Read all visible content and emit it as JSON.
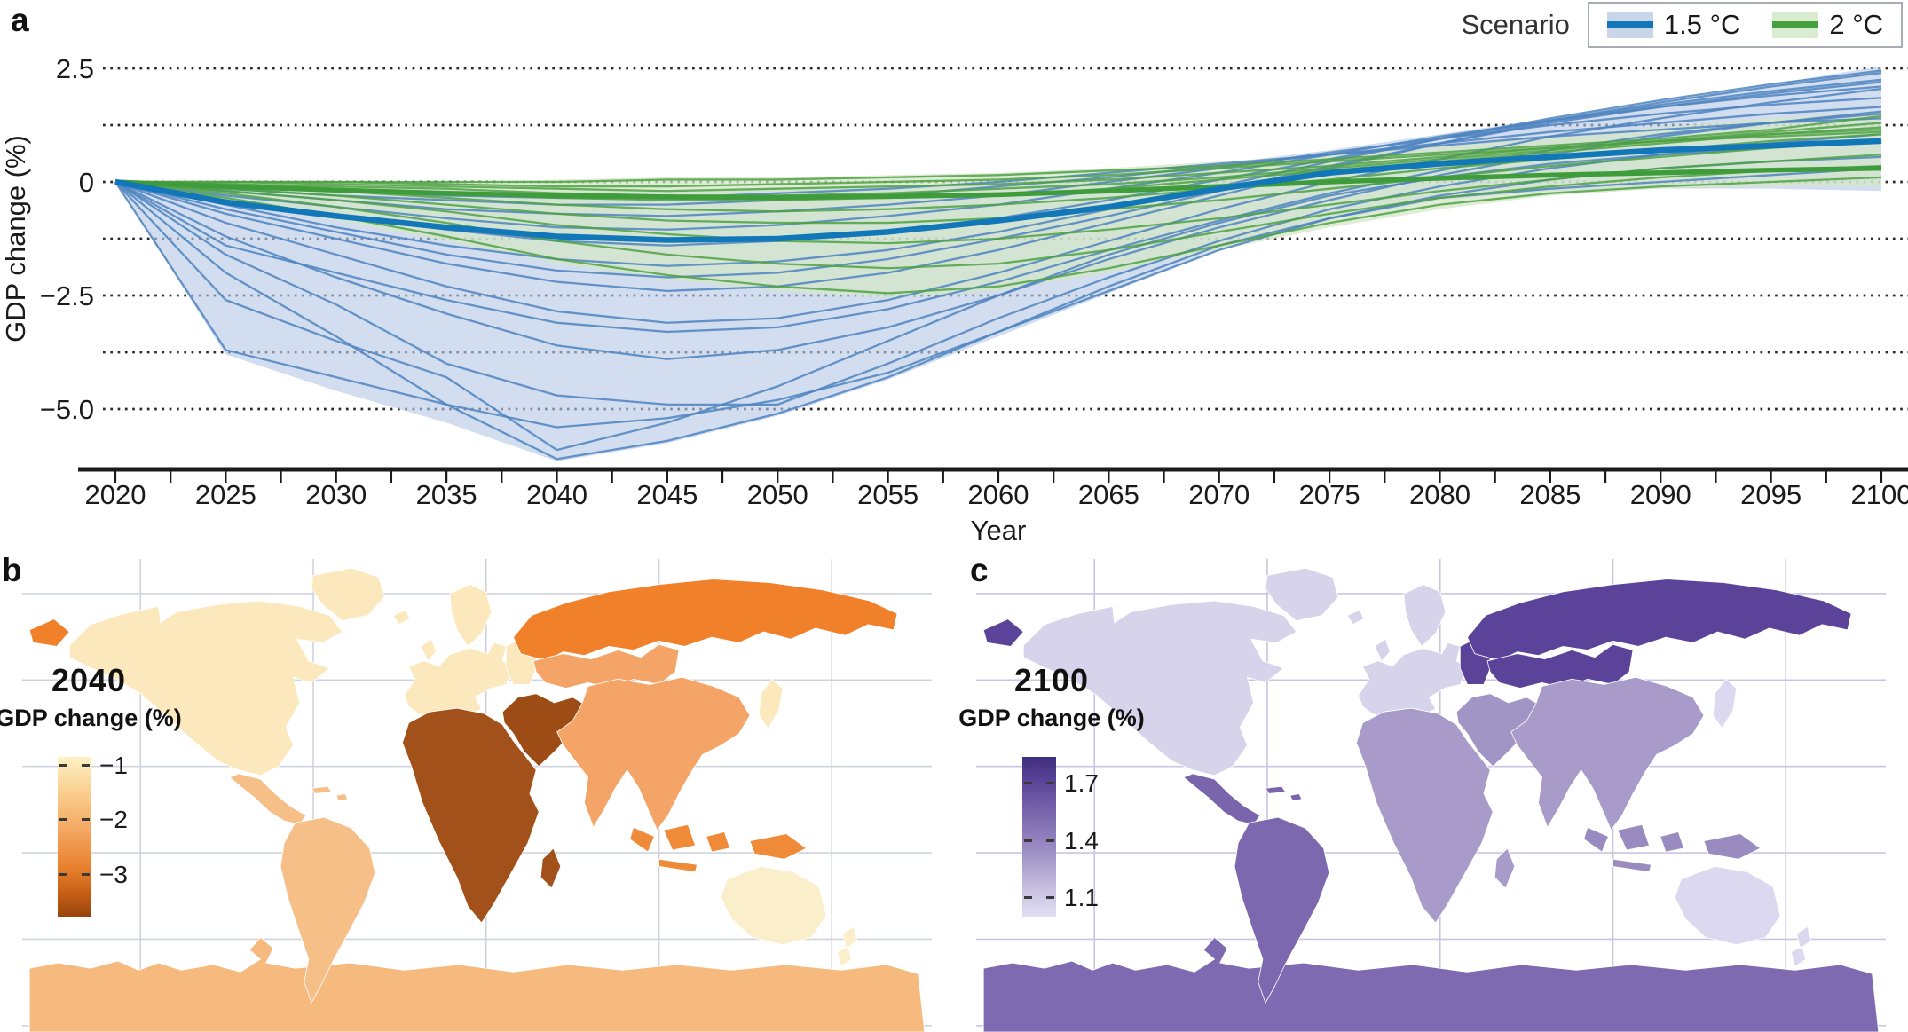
{
  "figure": {
    "panel_labels": {
      "a": "a",
      "b": "b",
      "c": "c"
    }
  },
  "chart_data": [
    {
      "type": "line",
      "panel": "a",
      "xlabel": "Year",
      "ylabel": "GDP change (%)",
      "x": [
        2020,
        2025,
        2030,
        2035,
        2040,
        2045,
        2050,
        2055,
        2060,
        2065,
        2070,
        2075,
        2080,
        2085,
        2090,
        2095,
        2100
      ],
      "xlim": [
        2020,
        2100
      ],
      "ylim": [
        -6.3,
        2.9
      ],
      "xtick_labels": [
        "2020",
        "2025",
        "2030",
        "2035",
        "2040",
        "2045",
        "2050",
        "2055",
        "2060",
        "2065",
        "2070",
        "2075",
        "2080",
        "2085",
        "2090",
        "2095",
        "2100"
      ],
      "minor_xtick_step_years": 2.5,
      "gridlines": [
        2.5,
        1.25,
        0,
        -1.25,
        -2.5,
        -3.75,
        -5.0
      ],
      "yticks": [
        {
          "value": 2.5,
          "label": "2.5"
        },
        {
          "value": 0,
          "label": "0"
        },
        {
          "value": -2.5,
          "label": "−2.5"
        },
        {
          "value": -5.0,
          "label": "−5.0"
        }
      ],
      "legend": {
        "title": "Scenario",
        "entries": [
          {
            "label": "1.5 °C",
            "line_color": "#1277b8",
            "band_color": "#c9d6ea"
          },
          {
            "label": "2 °C",
            "line_color": "#44a03c",
            "band_color": "#d9ebd0"
          }
        ]
      },
      "colors": {
        "blue_line": "#4e84c0",
        "blue_median": "#1277b8",
        "blue_band": "#b7c9e5",
        "green_line": "#4fa243",
        "green_median": "#3f9c3b",
        "green_band": "#d3e6c8",
        "grid": "#2a2a2a",
        "axis": "#1a1a1a"
      },
      "series": [
        {
          "name": "1.5C-envelope",
          "role": "band",
          "scenario": "1.5 °C",
          "upper": [
            0,
            -0.05,
            -0.1,
            -0.15,
            -0.2,
            -0.2,
            -0.15,
            -0.1,
            0,
            0.15,
            0.4,
            0.7,
            1.05,
            1.4,
            1.75,
            2.15,
            2.55
          ],
          "lower": [
            0,
            -3.8,
            -4.6,
            -5.3,
            -6.15,
            -5.75,
            -5.15,
            -4.35,
            -3.4,
            -2.45,
            -1.5,
            -0.85,
            -0.4,
            -0.2,
            -0.15,
            -0.15,
            -0.2
          ]
        },
        {
          "name": "2C-envelope",
          "role": "band",
          "scenario": "2 °C",
          "upper": [
            0,
            0,
            0,
            0,
            0.05,
            0.1,
            0.1,
            0.15,
            0.2,
            0.3,
            0.45,
            0.6,
            0.8,
            1.0,
            1.2,
            1.4,
            1.55
          ],
          "lower": [
            0,
            -0.4,
            -0.85,
            -1.3,
            -1.8,
            -2.15,
            -2.4,
            -2.55,
            -2.4,
            -2.0,
            -1.5,
            -1.0,
            -0.6,
            -0.3,
            -0.15,
            -0.1,
            -0.1
          ]
        },
        {
          "name": "1.5C-ensemble",
          "role": "ensemble",
          "scenario": "1.5 °C",
          "lines": [
            [
              0,
              -2.0,
              -3.4,
              -4.9,
              -6.1,
              -5.7,
              -5.1,
              -4.3,
              -3.3,
              -2.3,
              -1.4,
              -0.8,
              -0.35,
              -0.15,
              0,
              0.15,
              0.3
            ],
            [
              0,
              -3.7,
              -4.3,
              -4.9,
              -5.4,
              -5.2,
              -4.8,
              -4.2,
              -3.3,
              -2.4,
              -1.5,
              -0.8,
              -0.3,
              0.05,
              0.3,
              0.45,
              0.55
            ],
            [
              0,
              -2.6,
              -3.5,
              -4.3,
              -5.9,
              -5.3,
              -4.5,
              -3.5,
              -2.5,
              -1.6,
              -0.9,
              -0.3,
              0.1,
              0.4,
              0.6,
              0.75,
              0.9
            ],
            [
              0,
              -1.6,
              -2.7,
              -4.0,
              -4.7,
              -4.9,
              -4.9,
              -4.0,
              -3.0,
              -2.1,
              -1.3,
              -0.6,
              -0.1,
              0.3,
              0.6,
              0.85,
              1.05
            ],
            [
              0,
              -1.2,
              -2.1,
              -2.9,
              -3.6,
              -3.9,
              -3.7,
              -3.2,
              -2.5,
              -1.7,
              -1.0,
              -0.4,
              0.15,
              0.6,
              1.0,
              1.3,
              1.55
            ],
            [
              0,
              -0.9,
              -1.6,
              -2.3,
              -2.85,
              -3.1,
              -3.0,
              -2.6,
              -2.0,
              -1.3,
              -0.6,
              0,
              0.5,
              1.0,
              1.4,
              1.75,
              2.05
            ],
            [
              0,
              -0.7,
              -1.25,
              -1.8,
              -2.2,
              -2.4,
              -2.3,
              -2.0,
              -1.5,
              -0.9,
              -0.3,
              0.3,
              0.85,
              1.35,
              1.75,
              2.1,
              2.4
            ],
            [
              0,
              -0.5,
              -1.0,
              -1.4,
              -1.7,
              -1.85,
              -1.75,
              -1.5,
              -1.1,
              -0.6,
              -0.1,
              0.45,
              0.95,
              1.4,
              1.8,
              2.15,
              2.45
            ],
            [
              0,
              -0.4,
              -0.75,
              -1.05,
              -1.3,
              -1.4,
              -1.3,
              -1.1,
              -0.8,
              -0.4,
              0.05,
              0.5,
              0.95,
              1.35,
              1.7,
              2.0,
              2.25
            ],
            [
              0,
              -0.3,
              -0.55,
              -0.8,
              -1.0,
              -1.05,
              -0.95,
              -0.75,
              -0.5,
              -0.15,
              0.2,
              0.6,
              1.0,
              1.35,
              1.65,
              1.9,
              2.1
            ],
            [
              0,
              -0.2,
              -0.4,
              -0.6,
              -0.7,
              -0.75,
              -0.65,
              -0.5,
              -0.3,
              0,
              0.3,
              0.65,
              0.95,
              1.25,
              1.5,
              1.7,
              1.85
            ],
            [
              0,
              -0.15,
              -0.3,
              -0.4,
              -0.5,
              -0.5,
              -0.4,
              -0.3,
              -0.1,
              0.1,
              0.35,
              0.6,
              0.85,
              1.1,
              1.3,
              1.5,
              1.65
            ],
            [
              0,
              -0.1,
              -0.2,
              -0.3,
              -0.35,
              -0.35,
              -0.25,
              -0.15,
              0,
              0.2,
              0.4,
              0.6,
              0.8,
              1.0,
              1.15,
              1.3,
              1.4
            ],
            [
              0,
              -1.4,
              -2.0,
              -2.6,
              -3.1,
              -3.3,
              -3.2,
              -2.8,
              -2.2,
              -1.5,
              -0.85,
              -0.25,
              0.25,
              0.7,
              1.05,
              1.3,
              1.5
            ],
            [
              0,
              -0.6,
              -1.1,
              -1.6,
              -1.95,
              -2.1,
              -2.0,
              -1.7,
              -1.25,
              -0.75,
              -0.2,
              0.35,
              0.85,
              1.3,
              1.65,
              1.95,
              2.2
            ]
          ]
        },
        {
          "name": "2C-ensemble",
          "role": "ensemble",
          "scenario": "2 °C",
          "lines": [
            [
              0,
              -0.35,
              -0.75,
              -1.2,
              -1.7,
              -2.05,
              -2.3,
              -2.45,
              -2.3,
              -1.9,
              -1.4,
              -0.9,
              -0.5,
              -0.25,
              -0.1,
              0,
              0.1
            ],
            [
              0,
              -0.25,
              -0.55,
              -0.9,
              -1.3,
              -1.6,
              -1.8,
              -1.9,
              -1.8,
              -1.5,
              -1.1,
              -0.7,
              -0.35,
              -0.1,
              0.1,
              0.25,
              0.35
            ],
            [
              0,
              -0.2,
              -0.4,
              -0.65,
              -0.95,
              -1.15,
              -1.3,
              -1.35,
              -1.25,
              -1.05,
              -0.8,
              -0.5,
              -0.2,
              0.05,
              0.3,
              0.45,
              0.6
            ],
            [
              0,
              -0.15,
              -0.3,
              -0.5,
              -0.7,
              -0.85,
              -0.9,
              -0.9,
              -0.8,
              -0.6,
              -0.4,
              -0.15,
              0.1,
              0.35,
              0.55,
              0.75,
              0.9
            ],
            [
              0,
              -0.1,
              -0.2,
              -0.35,
              -0.5,
              -0.6,
              -0.65,
              -0.6,
              -0.5,
              -0.35,
              -0.15,
              0.05,
              0.3,
              0.5,
              0.7,
              0.9,
              1.05
            ],
            [
              0,
              -0.05,
              -0.15,
              -0.25,
              -0.35,
              -0.4,
              -0.4,
              -0.35,
              -0.3,
              -0.15,
              0.05,
              0.25,
              0.45,
              0.65,
              0.85,
              1.05,
              1.2
            ],
            [
              0,
              -0.05,
              -0.1,
              -0.15,
              -0.25,
              -0.3,
              -0.3,
              -0.25,
              -0.15,
              -0.05,
              0.1,
              0.3,
              0.5,
              0.7,
              0.9,
              1.1,
              1.3
            ],
            [
              0,
              0,
              -0.05,
              -0.1,
              -0.15,
              -0.2,
              -0.15,
              -0.1,
              -0.05,
              0.05,
              0.2,
              0.35,
              0.55,
              0.75,
              0.9,
              1.05,
              1.15
            ],
            [
              0,
              0,
              0,
              -0.05,
              -0.1,
              -0.1,
              -0.05,
              0,
              0.05,
              0.15,
              0.3,
              0.45,
              0.6,
              0.75,
              0.9,
              1.0,
              1.1
            ],
            [
              0,
              0,
              0,
              0,
              0,
              0.05,
              0.05,
              0.1,
              0.15,
              0.25,
              0.35,
              0.5,
              0.65,
              0.8,
              0.95,
              1.15,
              1.45
            ]
          ]
        },
        {
          "name": "2C-median",
          "role": "median",
          "scenario": "2 °C",
          "values": [
            0,
            -0.1,
            -0.18,
            -0.25,
            -0.3,
            -0.33,
            -0.34,
            -0.32,
            -0.28,
            -0.2,
            -0.1,
            0,
            0.08,
            0.15,
            0.2,
            0.26,
            0.3
          ]
        },
        {
          "name": "1.5C-median",
          "role": "median",
          "scenario": "1.5 °C",
          "values": [
            0,
            -0.45,
            -0.75,
            -1.0,
            -1.2,
            -1.28,
            -1.25,
            -1.1,
            -0.85,
            -0.55,
            -0.15,
            0.2,
            0.4,
            0.55,
            0.7,
            0.8,
            0.9
          ]
        }
      ]
    },
    {
      "type": "choropleth-map",
      "panel": "b",
      "title": "2040",
      "subtitle": "GDP change (%)",
      "graticule_color": "#cfd4dc",
      "colorbar": {
        "gradient": [
          {
            "color": "#fdf1c4",
            "pos": 0
          },
          {
            "color": "#facf90",
            "pos": 22
          },
          {
            "color": "#f4a55f",
            "pos": 47
          },
          {
            "color": "#e87f2c",
            "pos": 70
          },
          {
            "color": "#c25c14",
            "pos": 87
          },
          {
            "color": "#96450c",
            "pos": 100
          }
        ],
        "ticks": [
          {
            "label": "−1",
            "pos": 0.05
          },
          {
            "label": "−2",
            "pos": 0.39
          },
          {
            "label": "−3",
            "pos": 0.735
          }
        ]
      },
      "regions": {
        "north_america": "#fbe9bd",
        "greenland": "#fbe9bd",
        "europe": "#fbe9bd",
        "scandinavia": "#fbe9bd",
        "uk": "#fbe9bd",
        "iceland": "#fbe9bd",
        "eastern_europe": "#fbe9bd",
        "japan": "#fbe9bd",
        "australia": "#fbeecb",
        "new_zealand": "#fbeecb",
        "mexico_central_america": "#f7bf88",
        "caribbean": "#f7bf88",
        "south_america": "#f7bf88",
        "antarctica": "#f6b97e",
        "russia": "#f0802a",
        "chukotka": "#f0802a",
        "central_asia": "#f4a466",
        "china_south_asia": "#f4a466",
        "indonesia_png": "#ef8a38",
        "africa": "#a3511a",
        "madagascar": "#a3511a",
        "middle_east": "#9d4c15"
      }
    },
    {
      "type": "choropleth-map",
      "panel": "c",
      "title": "2100",
      "subtitle": "GDP change (%)",
      "graticule_color": "#c9c5e1",
      "colorbar": {
        "gradient": [
          {
            "color": "#3f2d7d",
            "pos": 0
          },
          {
            "color": "#5b4699",
            "pos": 16
          },
          {
            "color": "#7d6bb0",
            "pos": 38
          },
          {
            "color": "#9b8dc4",
            "pos": 58
          },
          {
            "color": "#beb6da",
            "pos": 78
          },
          {
            "color": "#d9d5ec",
            "pos": 94
          },
          {
            "color": "#e2dff2",
            "pos": 100
          }
        ],
        "ticks": [
          {
            "label": "1.7",
            "pos": 0.16
          },
          {
            "label": "1.4",
            "pos": 0.52
          },
          {
            "label": "1.1",
            "pos": 0.875
          }
        ]
      },
      "regions": {
        "north_america": "#d7d3eb",
        "greenland": "#d7d3eb",
        "europe": "#d7d3eb",
        "scandinavia": "#d7d3eb",
        "uk": "#d7d3eb",
        "iceland": "#d7d3eb",
        "eastern_europe": "#5b4399",
        "japan": "#dbd8ef",
        "australia": "#dbd8ef",
        "new_zealand": "#dbd8ef",
        "mexico_central_america": "#7a65ad",
        "caribbean": "#7a65ad",
        "south_america": "#7c68ae",
        "antarctica": "#7e6ab0",
        "russia": "#5b4399",
        "chukotka": "#5b4399",
        "central_asia": "#5b4399",
        "china_south_asia": "#a89bc9",
        "indonesia_png": "#998ac0",
        "africa": "#a89bc9",
        "madagascar": "#a89bc9",
        "middle_east": "#a195c5"
      }
    }
  ]
}
